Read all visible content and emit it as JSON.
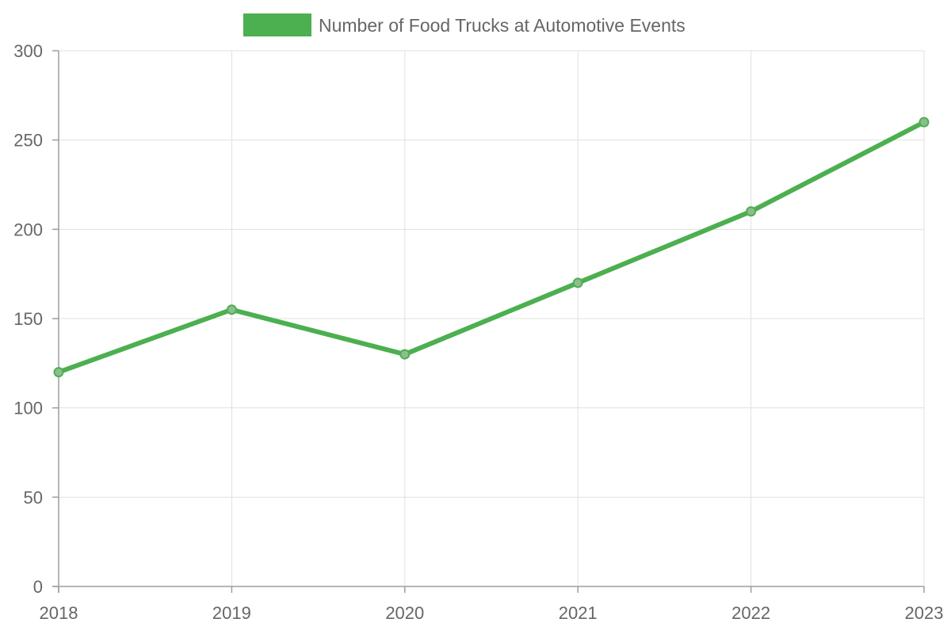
{
  "chart_data": {
    "type": "line",
    "title": "",
    "xlabel": "",
    "ylabel": "",
    "categories": [
      "2018",
      "2019",
      "2020",
      "2021",
      "2022",
      "2023"
    ],
    "series": [
      {
        "name": "Number of Food Trucks at Automotive Events",
        "values": [
          120,
          155,
          130,
          170,
          210,
          260
        ],
        "color": "#4caf50",
        "point_fill": "#8fbc8f",
        "point_stroke": "#4caf50"
      }
    ],
    "ylim": [
      0,
      300
    ],
    "y_ticks": [
      0,
      50,
      100,
      150,
      200,
      250,
      300
    ],
    "grid": true,
    "legend_position": "top"
  }
}
